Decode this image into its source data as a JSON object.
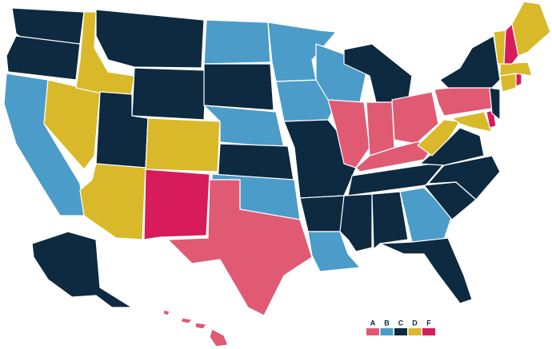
{
  "legend": [
    {
      "label": "A",
      "color": "#e05a73"
    },
    {
      "label": "B",
      "color": "#4b9cc9"
    },
    {
      "label": "C",
      "color": "#0d2a40"
    },
    {
      "label": "D",
      "color": "#d9b92a"
    },
    {
      "label": "F",
      "color": "#d81b5b"
    }
  ]
}
